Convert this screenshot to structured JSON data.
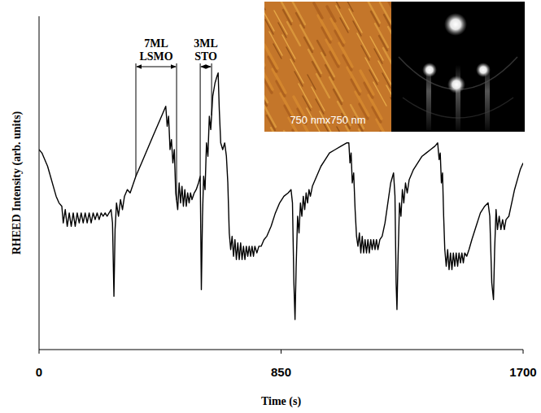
{
  "chart_data": {
    "type": "line",
    "color": "#000000",
    "xlabel": "Time (s)",
    "ylabel": "RHEED Intensity (arb. units)",
    "xlim": [
      0,
      1700
    ],
    "xticks": [
      0,
      850,
      1700
    ],
    "ylim": [
      0,
      100
    ],
    "tick_labels": "x",
    "annotations": [
      {
        "text": [
          "7ML",
          "LSMO"
        ],
        "x": [
          340,
          483
        ]
      },
      {
        "text": [
          "3ML",
          "STO"
        ],
        "x": [
          566,
          606
        ]
      }
    ],
    "inset_label": "750 nmx750 nm",
    "x": [
      0,
      10,
      20,
      30,
      40,
      50,
      60,
      70,
      80,
      85,
      92,
      99,
      106,
      113,
      120,
      127,
      134,
      141,
      148,
      155,
      162,
      169,
      176,
      183,
      190,
      197,
      204,
      211,
      218,
      225,
      232,
      239,
      246,
      253,
      258,
      263,
      267,
      272,
      279,
      286,
      293,
      300,
      310,
      320,
      340,
      360,
      380,
      400,
      420,
      435,
      445,
      450,
      455,
      460,
      465,
      470,
      475,
      480,
      487,
      492,
      497,
      502,
      507,
      512,
      517,
      522,
      527,
      532,
      537,
      545,
      552,
      560,
      566,
      570,
      574,
      578,
      583,
      588,
      593,
      598,
      603,
      610,
      618,
      625,
      629,
      633,
      638,
      645,
      652,
      658,
      663,
      668,
      673,
      678,
      683,
      688,
      693,
      698,
      703,
      708,
      713,
      718,
      723,
      728,
      733,
      738,
      743,
      748,
      753,
      758,
      765,
      772,
      780,
      790,
      800,
      815,
      830,
      845,
      860,
      875,
      885,
      890,
      895,
      899,
      903,
      908,
      913,
      918,
      923,
      928,
      933,
      938,
      943,
      948,
      953,
      960,
      975,
      990,
      1005,
      1020,
      1040,
      1060,
      1080,
      1088,
      1092,
      1096,
      1100,
      1105,
      1110,
      1115,
      1120,
      1125,
      1130,
      1135,
      1140,
      1145,
      1150,
      1155,
      1160,
      1165,
      1170,
      1175,
      1180,
      1185,
      1190,
      1197,
      1205,
      1215,
      1225,
      1235,
      1245,
      1250,
      1254,
      1257,
      1261,
      1266,
      1271,
      1276,
      1281,
      1287,
      1293,
      1300,
      1315,
      1330,
      1345,
      1360,
      1375,
      1390,
      1400,
      1405,
      1409,
      1413,
      1417,
      1421,
      1425,
      1430,
      1435,
      1440,
      1445,
      1450,
      1455,
      1460,
      1465,
      1470,
      1475,
      1480,
      1485,
      1490,
      1495,
      1502,
      1510,
      1520,
      1535,
      1550,
      1565,
      1577,
      1583,
      1590,
      1596,
      1600,
      1605,
      1610,
      1616,
      1622,
      1628,
      1634,
      1640,
      1650,
      1660,
      1670,
      1680,
      1690,
      1700
    ],
    "values": [
      60,
      59,
      57,
      55,
      52,
      49,
      46,
      44,
      43,
      38,
      42,
      37,
      41,
      37,
      41,
      37,
      41,
      38,
      41,
      38,
      41,
      38,
      41,
      38,
      41,
      39,
      41,
      39,
      41,
      40,
      41,
      40,
      41,
      42,
      38,
      16,
      36,
      44,
      40,
      45,
      42,
      46,
      48,
      47,
      52,
      56,
      60,
      64,
      68,
      71,
      73,
      67,
      70,
      60,
      63,
      56,
      60,
      47,
      42,
      50,
      44,
      49,
      43,
      48,
      43,
      47,
      44,
      47,
      45,
      47,
      48,
      50,
      52,
      18,
      40,
      52,
      48,
      62,
      58,
      70,
      66,
      76,
      80,
      82,
      83,
      72,
      62,
      60,
      62,
      58,
      50,
      35,
      30,
      34,
      28,
      33,
      27,
      32,
      27,
      32,
      27,
      31,
      27,
      31,
      28,
      31,
      28,
      31,
      28,
      31,
      29,
      31,
      31,
      33,
      34,
      37,
      41,
      44,
      46,
      47,
      48,
      44,
      20,
      9,
      25,
      40,
      35,
      44,
      40,
      46,
      42,
      47,
      44,
      48,
      46,
      49,
      52,
      55,
      57,
      59,
      60,
      61,
      62,
      62,
      56,
      59,
      50,
      53,
      42,
      34,
      31,
      35,
      29,
      34,
      29,
      33,
      29,
      33,
      29,
      33,
      30,
      33,
      30,
      33,
      30,
      33,
      34,
      38,
      44,
      50,
      53,
      46,
      20,
      12,
      28,
      44,
      40,
      48,
      44,
      50,
      47,
      51,
      54,
      56,
      58,
      59,
      60,
      61,
      62,
      57,
      59,
      50,
      53,
      40,
      30,
      25,
      30,
      24,
      29,
      24,
      29,
      25,
      29,
      25,
      29,
      26,
      29,
      26,
      29,
      28,
      30,
      33,
      37,
      41,
      43,
      44,
      40,
      20,
      15,
      30,
      42,
      36,
      40,
      36,
      39,
      36,
      39,
      40,
      44,
      48,
      51,
      54,
      56
    ]
  }
}
